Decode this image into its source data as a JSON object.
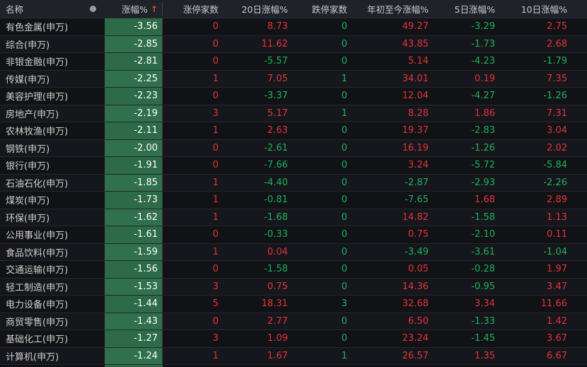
{
  "table": {
    "columns": [
      {
        "key": "name",
        "label": "名称"
      },
      {
        "key": "dot",
        "label": ""
      },
      {
        "key": "change",
        "label": "涨幅%",
        "sort_icon": "↑"
      },
      {
        "key": "limit_up",
        "label": "涨停家数"
      },
      {
        "key": "chg20",
        "label": "20日涨幅%"
      },
      {
        "key": "limit_down",
        "label": "跌停家数"
      },
      {
        "key": "ytd",
        "label": "年初至今涨幅%"
      },
      {
        "key": "chg5",
        "label": "5日涨幅%"
      },
      {
        "key": "chg10",
        "label": "10日涨幅%"
      }
    ],
    "rows": [
      {
        "name": "有色金属(申万)",
        "change": "-3.56",
        "limit_up": "0",
        "chg20": "8.73",
        "limit_down": "0",
        "ytd": "49.27",
        "chg5": "-3.29",
        "chg10": "2.75"
      },
      {
        "name": "综合(申万)",
        "change": "-2.85",
        "limit_up": "0",
        "chg20": "11.62",
        "limit_down": "0",
        "ytd": "43.85",
        "chg5": "-1.73",
        "chg10": "2.68"
      },
      {
        "name": "非银金融(申万)",
        "change": "-2.81",
        "limit_up": "0",
        "chg20": "-5.57",
        "limit_down": "0",
        "ytd": "5.14",
        "chg5": "-4.23",
        "chg10": "-1.79"
      },
      {
        "name": "传媒(申万)",
        "change": "-2.25",
        "limit_up": "1",
        "chg20": "7.05",
        "limit_down": "1",
        "ytd": "34.01",
        "chg5": "0.19",
        "chg10": "7.35"
      },
      {
        "name": "美容护理(申万)",
        "change": "-2.23",
        "limit_up": "0",
        "chg20": "-3.37",
        "limit_down": "0",
        "ytd": "12.04",
        "chg5": "-4.27",
        "chg10": "-1.26"
      },
      {
        "name": "房地产(申万)",
        "change": "-2.19",
        "limit_up": "3",
        "chg20": "5.17",
        "limit_down": "1",
        "ytd": "8.28",
        "chg5": "1.86",
        "chg10": "7.31"
      },
      {
        "name": "农林牧渔(申万)",
        "change": "-2.11",
        "limit_up": "1",
        "chg20": "2.63",
        "limit_down": "0",
        "ytd": "19.37",
        "chg5": "-2.83",
        "chg10": "3.04"
      },
      {
        "name": "钢铁(申万)",
        "change": "-2.00",
        "limit_up": "0",
        "chg20": "-2.61",
        "limit_down": "0",
        "ytd": "16.19",
        "chg5": "-1.26",
        "chg10": "2.02"
      },
      {
        "name": "银行(申万)",
        "change": "-1.91",
        "limit_up": "0",
        "chg20": "-7.66",
        "limit_down": "0",
        "ytd": "3.24",
        "chg5": "-5.72",
        "chg10": "-5.84"
      },
      {
        "name": "石油石化(申万)",
        "change": "-1.85",
        "limit_up": "1",
        "chg20": "-4.40",
        "limit_down": "0",
        "ytd": "-2.87",
        "chg5": "-2.93",
        "chg10": "-2.26"
      },
      {
        "name": "煤炭(申万)",
        "change": "-1.73",
        "limit_up": "1",
        "chg20": "-0.81",
        "limit_down": "0",
        "ytd": "-7.65",
        "chg5": "1.68",
        "chg10": "2.89"
      },
      {
        "name": "环保(申万)",
        "change": "-1.62",
        "limit_up": "1",
        "chg20": "-1.68",
        "limit_down": "0",
        "ytd": "14.82",
        "chg5": "-1.58",
        "chg10": "1.13"
      },
      {
        "name": "公用事业(申万)",
        "change": "-1.61",
        "limit_up": "0",
        "chg20": "-0.33",
        "limit_down": "0",
        "ytd": "0.75",
        "chg5": "-2.10",
        "chg10": "0.11"
      },
      {
        "name": "食品饮料(申万)",
        "change": "-1.59",
        "limit_up": "1",
        "chg20": "0.04",
        "limit_down": "0",
        "ytd": "-3.49",
        "chg5": "-3.61",
        "chg10": "-1.04"
      },
      {
        "name": "交通运输(申万)",
        "change": "-1.56",
        "limit_up": "0",
        "chg20": "-1.58",
        "limit_down": "0",
        "ytd": "0.05",
        "chg5": "-0.28",
        "chg10": "1.97"
      },
      {
        "name": "轻工制造(申万)",
        "change": "-1.53",
        "limit_up": "3",
        "chg20": "0.75",
        "limit_down": "0",
        "ytd": "14.36",
        "chg5": "-0.95",
        "chg10": "3.47"
      },
      {
        "name": "电力设备(申万)",
        "change": "-1.44",
        "limit_up": "5",
        "chg20": "18.31",
        "limit_down": "3",
        "ytd": "32.68",
        "chg5": "3.34",
        "chg10": "11.66"
      },
      {
        "name": "商贸零售(申万)",
        "change": "-1.43",
        "limit_up": "0",
        "chg20": "2.77",
        "limit_down": "0",
        "ytd": "6.50",
        "chg5": "-1.33",
        "chg10": "1.42"
      },
      {
        "name": "基础化工(申万)",
        "change": "-1.27",
        "limit_up": "3",
        "chg20": "1.09",
        "limit_down": "0",
        "ytd": "23.24",
        "chg5": "-1.45",
        "chg10": "3.67"
      },
      {
        "name": "计算机(申万)",
        "change": "-1.24",
        "limit_up": "1",
        "chg20": "1.67",
        "limit_down": "1",
        "ytd": "26.57",
        "chg5": "1.35",
        "chg10": "6.67"
      }
    ]
  },
  "colors": {
    "red": "#e23338",
    "green": "#1fb05c",
    "sorted_cell_bg": "#2d6a48",
    "name_text": "#cfcec9",
    "header_text": "#c7ccd3",
    "sort_arrow": "#e8502e",
    "dot_indicator": "#959ba4"
  }
}
